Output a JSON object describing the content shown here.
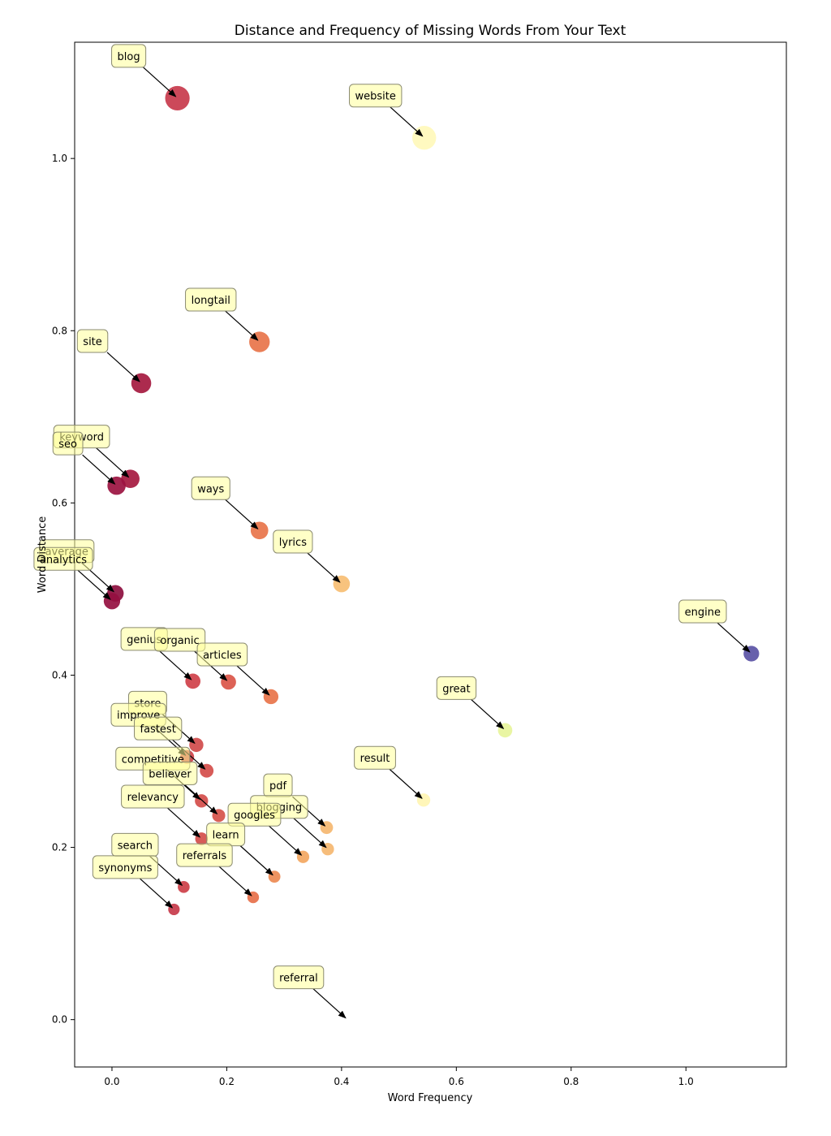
{
  "chart_data": {
    "type": "scatter",
    "title": "Distance and Frequency of Missing Words From Your Text",
    "xlabel": "Word Frequency",
    "ylabel": "Word Distance",
    "xlim": [
      -0.065,
      1.175
    ],
    "ylim": [
      -0.055,
      1.135
    ],
    "xticks": [
      0.0,
      0.2,
      0.4,
      0.6,
      0.8,
      1.0
    ],
    "yticks": [
      0.0,
      0.2,
      0.4,
      0.6,
      0.8,
      1.0
    ],
    "xtick_labels": [
      "0.0",
      "0.2",
      "0.4",
      "0.6",
      "0.8",
      "1.0"
    ],
    "ytick_labels": [
      "0.0",
      "0.2",
      "0.4",
      "0.6",
      "0.8",
      "1.0"
    ],
    "grid": false,
    "points": [
      {
        "label": "blog",
        "x": 0.114,
        "y": 1.07,
        "color": "#c8394c"
      },
      {
        "label": "website",
        "x": 0.544,
        "y": 1.024,
        "color": "#fff9bb"
      },
      {
        "label": "longtail",
        "x": 0.257,
        "y": 0.787,
        "color": "#e8744a"
      },
      {
        "label": "site",
        "x": 0.051,
        "y": 0.739,
        "color": "#a5193f"
      },
      {
        "label": "keyword",
        "x": 0.032,
        "y": 0.628,
        "color": "#a5193f"
      },
      {
        "label": "seo",
        "x": 0.008,
        "y": 0.62,
        "color": "#9b1240"
      },
      {
        "label": "ways",
        "x": 0.257,
        "y": 0.568,
        "color": "#e8744a"
      },
      {
        "label": "lyrics",
        "x": 0.4,
        "y": 0.506,
        "color": "#f7be73"
      },
      {
        "label": "average",
        "x": 0.006,
        "y": 0.495,
        "color": "#8d0e3e"
      },
      {
        "label": "analytics",
        "x": 0.0,
        "y": 0.486,
        "color": "#950f40"
      },
      {
        "label": "engine",
        "x": 1.114,
        "y": 0.425,
        "color": "#5a52a5"
      },
      {
        "label": "genius",
        "x": 0.141,
        "y": 0.393,
        "color": "#cf4049"
      },
      {
        "label": "organic",
        "x": 0.203,
        "y": 0.392,
        "color": "#da5548"
      },
      {
        "label": "articles",
        "x": 0.277,
        "y": 0.375,
        "color": "#e8744a"
      },
      {
        "label": "great",
        "x": 0.685,
        "y": 0.336,
        "color": "#e7f49b"
      },
      {
        "label": "store",
        "x": 0.147,
        "y": 0.319,
        "color": "#d04b4b"
      },
      {
        "label": "improve",
        "x": 0.131,
        "y": 0.305,
        "color": "#ce4148"
      },
      {
        "label": "fastest",
        "x": 0.165,
        "y": 0.289,
        "color": "#d44d4a"
      },
      {
        "label": "result",
        "x": 0.543,
        "y": 0.255,
        "color": "#fff5b3"
      },
      {
        "label": "competitive",
        "x": 0.156,
        "y": 0.254,
        "color": "#d44d4a"
      },
      {
        "label": "believer",
        "x": 0.186,
        "y": 0.237,
        "color": "#d6534a"
      },
      {
        "label": "pdf",
        "x": 0.374,
        "y": 0.223,
        "color": "#f5b770"
      },
      {
        "label": "relevancy",
        "x": 0.156,
        "y": 0.21,
        "color": "#d44d4a"
      },
      {
        "label": "blogging",
        "x": 0.376,
        "y": 0.198,
        "color": "#f5b770"
      },
      {
        "label": "googles",
        "x": 0.333,
        "y": 0.189,
        "color": "#f3a761"
      },
      {
        "label": "learn",
        "x": 0.283,
        "y": 0.166,
        "color": "#ed8a53"
      },
      {
        "label": "search",
        "x": 0.125,
        "y": 0.154,
        "color": "#cd3f48"
      },
      {
        "label": "referrals",
        "x": 0.246,
        "y": 0.142,
        "color": "#e7704a"
      },
      {
        "label": "synonyms",
        "x": 0.108,
        "y": 0.128,
        "color": "#c73a4a"
      },
      {
        "label": "referral",
        "x": 0.41,
        "y": 0.0,
        "color": "#ffffff"
      }
    ]
  }
}
